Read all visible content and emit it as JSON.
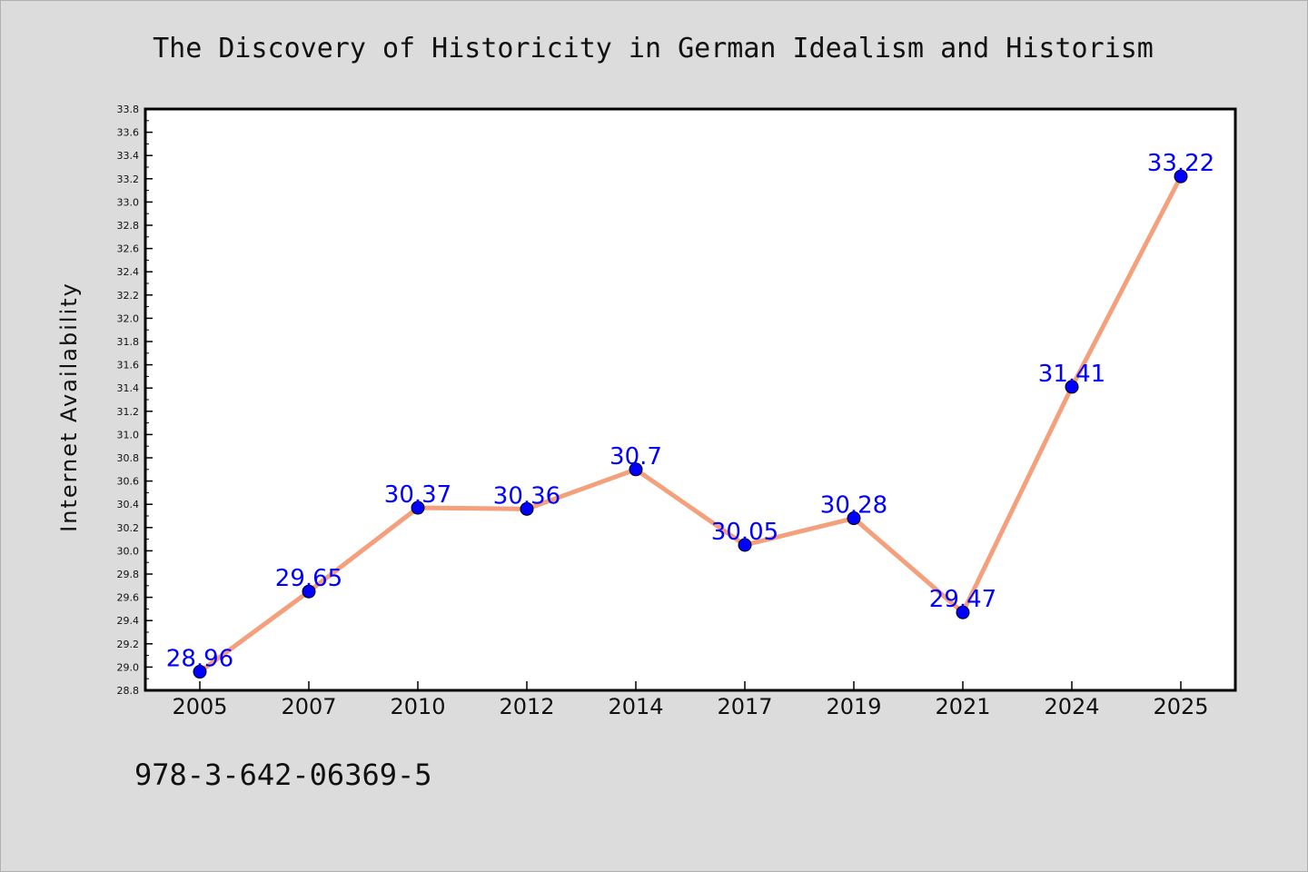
{
  "chart_data": {
    "type": "line",
    "title": "The Discovery of Historicity in German Idealism and Historism",
    "xlabel": "",
    "ylabel": "Internet Availability",
    "categories": [
      "2005",
      "2007",
      "2010",
      "2012",
      "2014",
      "2017",
      "2019",
      "2021",
      "2024",
      "2025"
    ],
    "series": [
      {
        "values": [
          28.96,
          29.65,
          30.37,
          30.36,
          30.7,
          30.05,
          30.28,
          29.47,
          31.41,
          33.22
        ],
        "labels": [
          "28.96",
          "29.65",
          "30.37",
          "30.36",
          "30.7",
          "30.05",
          "30.28",
          "29.47",
          "31.41",
          "33.22"
        ],
        "line_color": "#f4a07c",
        "marker_color": "#0000ff"
      }
    ],
    "ylim": [
      28.8,
      33.8
    ],
    "yticks": [
      "28.8",
      "29.0",
      "29.2",
      "29.4",
      "29.6",
      "29.8",
      "30.0",
      "30.2",
      "30.4",
      "30.6",
      "30.8",
      "31.0",
      "31.2",
      "31.4",
      "31.6",
      "31.8",
      "32.0",
      "32.2",
      "32.4",
      "32.6",
      "32.8",
      "33.0",
      "33.2",
      "33.4",
      "33.6",
      "33.8"
    ],
    "grid": false,
    "legend": "none",
    "data_label_color": "#0000ff"
  },
  "footnote": "978-3-642-06369-5",
  "colors": {
    "background": "#dcdcdc",
    "plot_background": "#ffffff"
  }
}
